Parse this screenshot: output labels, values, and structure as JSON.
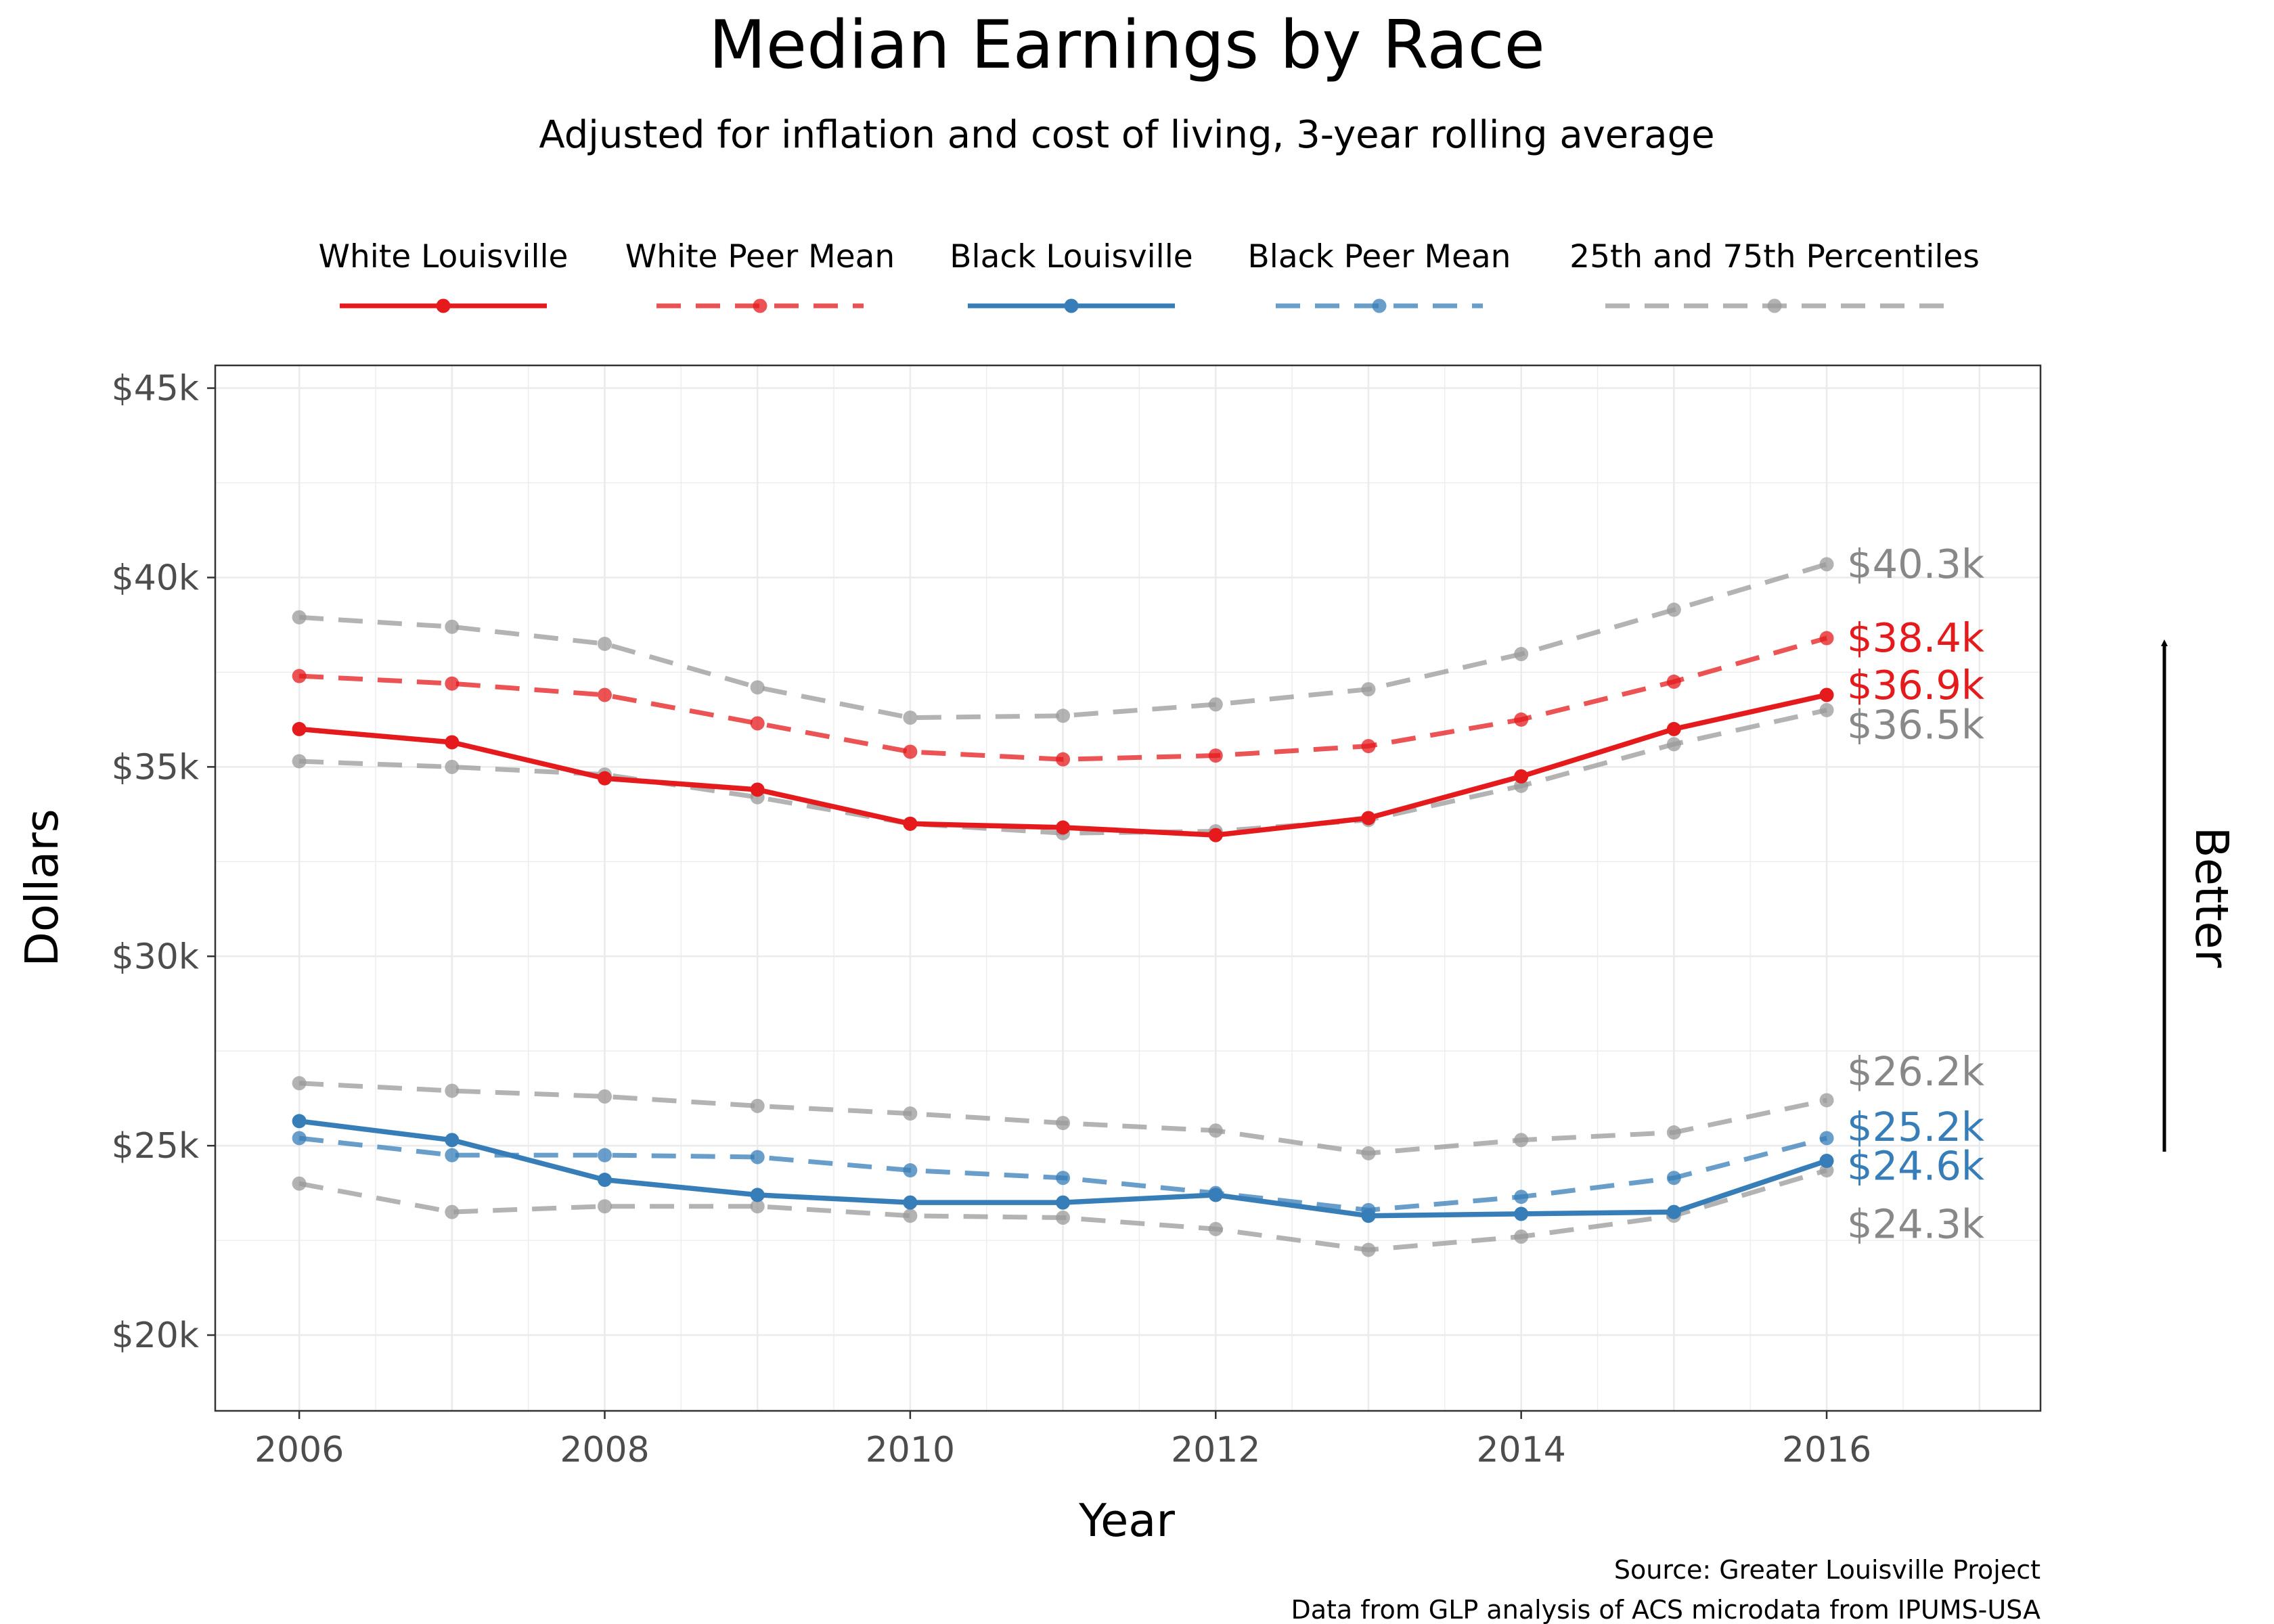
{
  "chart_data": {
    "type": "line",
    "title": "Median Earnings by Race",
    "subtitle": "Adjusted for inflation and cost of living, 3-year rolling average",
    "xlabel": "Year",
    "ylabel": "Dollars",
    "x": [
      2006,
      2007,
      2008,
      2009,
      2010,
      2011,
      2012,
      2013,
      2014,
      2015,
      2016
    ],
    "xlim": [
      2005.45,
      2017.4
    ],
    "ylim": [
      18000,
      45600
    ],
    "x_ticks": [
      {
        "value": 2006,
        "label": "2006"
      },
      {
        "value": 2008,
        "label": "2008"
      },
      {
        "value": 2010,
        "label": "2010"
      },
      {
        "value": 2012,
        "label": "2012"
      },
      {
        "value": 2014,
        "label": "2014"
      },
      {
        "value": 2016,
        "label": "2016"
      }
    ],
    "y_ticks": [
      {
        "value": 20000,
        "label": "$20k"
      },
      {
        "value": 25000,
        "label": "$25k"
      },
      {
        "value": 30000,
        "label": "$30k"
      },
      {
        "value": 35000,
        "label": "$35k"
      },
      {
        "value": 40000,
        "label": "$40k"
      },
      {
        "value": 45000,
        "label": "$45k"
      }
    ],
    "grid": true,
    "legend_position": "top",
    "legend": [
      {
        "label": "White Louisville",
        "color": "#e41a1c",
        "dashed": false
      },
      {
        "label": "White Peer Mean",
        "color": "#e41a1c",
        "dashed": true
      },
      {
        "label": "Black Louisville",
        "color": "#377eb8",
        "dashed": false
      },
      {
        "label": "Black Peer Mean",
        "color": "#377eb8",
        "dashed": true
      },
      {
        "label": "25th and 75th Percentiles",
        "color": "#999999",
        "dashed": true
      }
    ],
    "series": [
      {
        "id": "white-75th-percentile",
        "color": "#999999",
        "dashed": true,
        "values": [
          38950,
          38700,
          38250,
          37100,
          36300,
          36350,
          36650,
          37050,
          37980,
          39150,
          40350
        ],
        "end_label": "$40.3k"
      },
      {
        "id": "white-25th-percentile",
        "color": "#999999",
        "dashed": true,
        "values": [
          35150,
          35000,
          34800,
          34200,
          33500,
          33250,
          33300,
          33600,
          34500,
          35600,
          36500
        ],
        "end_label": "$36.5k"
      },
      {
        "id": "black-75th-percentile",
        "color": "#999999",
        "dashed": true,
        "values": [
          26650,
          26450,
          26300,
          26050,
          25850,
          25600,
          25400,
          24800,
          25150,
          25350,
          26200
        ],
        "end_label": "$26.2k"
      },
      {
        "id": "black-25th-percentile",
        "color": "#999999",
        "dashed": true,
        "values": [
          24000,
          23250,
          23400,
          23400,
          23150,
          23100,
          22800,
          22250,
          22600,
          23150,
          24350
        ],
        "end_label": "$24.3k"
      },
      {
        "id": "white-peer-mean",
        "color": "#e41a1c",
        "dashed": true,
        "values": [
          37400,
          37200,
          36900,
          36150,
          35400,
          35200,
          35300,
          35550,
          36250,
          37250,
          38400
        ],
        "end_label": "$38.4k"
      },
      {
        "id": "black-peer-mean",
        "color": "#377eb8",
        "dashed": true,
        "values": [
          25200,
          24750,
          24750,
          24700,
          24350,
          24150,
          23750,
          23300,
          23650,
          24150,
          25200
        ],
        "end_label": "$25.2k"
      },
      {
        "id": "white-louisville",
        "color": "#e41a1c",
        "dashed": false,
        "values": [
          36000,
          35650,
          34700,
          34400,
          33500,
          33400,
          33200,
          33650,
          34750,
          36000,
          36900
        ],
        "end_label": "$36.9k"
      },
      {
        "id": "black-louisville",
        "color": "#377eb8",
        "dashed": false,
        "values": [
          25650,
          25150,
          24100,
          23700,
          23500,
          23500,
          23700,
          23150,
          23200,
          23250,
          24600
        ],
        "end_label": "$24.6k"
      }
    ],
    "annotation": "Better",
    "caption": [
      "Source: Greater Louisville Project",
      "Data from GLP analysis of ACS microdata from IPUMS-USA"
    ]
  }
}
